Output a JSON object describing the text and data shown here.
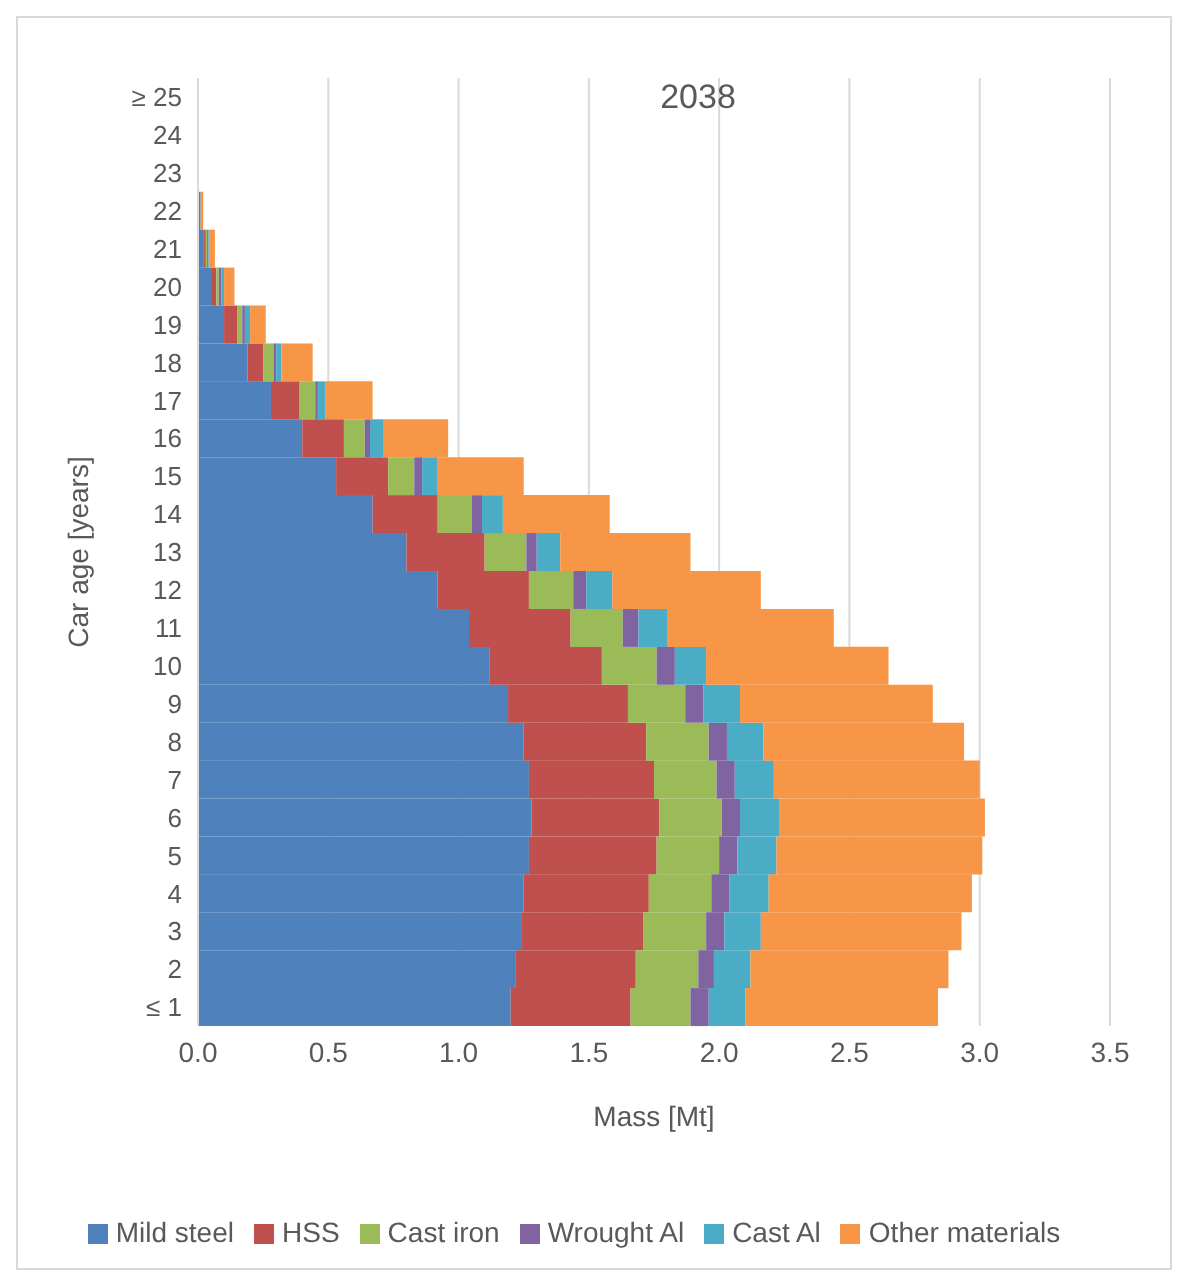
{
  "chart_data": {
    "type": "bar",
    "title": "2038",
    "xlabel": "Mass [Mt]",
    "ylabel": "Car age [years]",
    "orientation": "horizontal",
    "stacked": true,
    "grid": "x",
    "legend": "bottom",
    "categories": [
      "≥ 25",
      "24",
      "23",
      "22",
      "21",
      "20",
      "19",
      "18",
      "17",
      "16",
      "15",
      "14",
      "13",
      "12",
      "11",
      "10",
      "9",
      "8",
      "7",
      "6",
      "5",
      "4",
      "3",
      "2",
      "≤ 1"
    ],
    "xlim": [
      0,
      3.5
    ],
    "xticks": [
      {
        "value": 0,
        "label": "0.0"
      },
      0.5,
      {
        "value": 1,
        "label": "1.0"
      },
      1.5,
      {
        "value": 2,
        "label": "2.0"
      },
      2.5,
      {
        "value": 3,
        "label": "3.0"
      },
      3.5
    ],
    "series": [
      {
        "name": "Mild steel",
        "color": "#4f81bd",
        "values": [
          null,
          null,
          null,
          0.01,
          0.02,
          0.05,
          0.1,
          0.19,
          0.28,
          0.4,
          0.53,
          0.67,
          0.8,
          0.92,
          1.04,
          1.12,
          1.19,
          1.25,
          1.27,
          1.28,
          1.27,
          1.25,
          1.24,
          1.22,
          1.2
        ]
      },
      {
        "name": "HSS",
        "color": "#c0504d",
        "values": [
          null,
          null,
          null,
          null,
          0.01,
          0.02,
          0.05,
          0.06,
          0.11,
          0.16,
          0.2,
          0.25,
          0.3,
          0.35,
          0.39,
          0.43,
          0.46,
          0.47,
          0.48,
          0.49,
          0.49,
          0.48,
          0.47,
          0.46,
          0.46
        ]
      },
      {
        "name": "Cast iron",
        "color": "#9bbb59",
        "values": [
          null,
          null,
          null,
          null,
          0.005,
          0.01,
          0.02,
          0.04,
          0.06,
          0.08,
          0.1,
          0.13,
          0.16,
          0.17,
          0.2,
          0.21,
          0.22,
          0.24,
          0.24,
          0.24,
          0.24,
          0.24,
          0.24,
          0.24,
          0.23
        ]
      },
      {
        "name": "Wrought Al",
        "color": "#8064a2",
        "values": [
          null,
          null,
          null,
          null,
          0.005,
          0.01,
          0.01,
          0.01,
          0.01,
          0.02,
          0.03,
          0.04,
          0.04,
          0.05,
          0.06,
          0.07,
          0.07,
          0.07,
          0.07,
          0.07,
          0.07,
          0.07,
          0.07,
          0.06,
          0.07
        ]
      },
      {
        "name": "Cast Al",
        "color": "#4bacc6",
        "values": [
          null,
          null,
          null,
          null,
          0.005,
          0.01,
          0.02,
          0.02,
          0.03,
          0.05,
          0.06,
          0.08,
          0.09,
          0.1,
          0.11,
          0.12,
          0.14,
          0.14,
          0.15,
          0.15,
          0.15,
          0.15,
          0.14,
          0.14,
          0.14
        ]
      },
      {
        "name": "Other materials",
        "color": "#f79646",
        "values": [
          null,
          null,
          null,
          0.01,
          0.02,
          0.04,
          0.06,
          0.12,
          0.18,
          0.25,
          0.33,
          0.41,
          0.5,
          0.57,
          0.64,
          0.7,
          0.74,
          0.77,
          0.79,
          0.79,
          0.79,
          0.78,
          0.77,
          0.76,
          0.74
        ]
      }
    ]
  }
}
